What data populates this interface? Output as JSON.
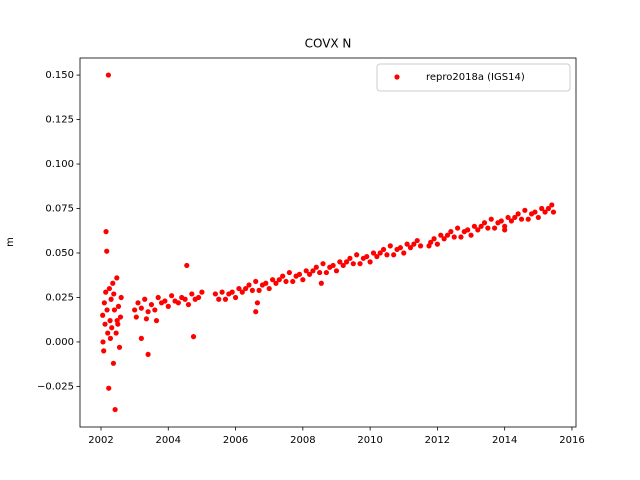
{
  "chart_data": {
    "type": "scatter",
    "title": "COVX N",
    "y_label": "m",
    "xlim": [
      2001.376,
      2016.12
    ],
    "ylim": [
      -0.0478,
      0.1596
    ],
    "xticks": [
      2002,
      2004,
      2006,
      2008,
      2010,
      2012,
      2014,
      2016
    ],
    "yticks": [
      {
        "value": -0.025,
        "label": "−0.025"
      },
      {
        "value": 0,
        "label": "0.000"
      },
      {
        "value": 0.025,
        "label": "0.025"
      },
      {
        "value": 0.05,
        "label": "0.050"
      },
      {
        "value": 0.075,
        "label": "0.075"
      },
      {
        "value": 0.1,
        "label": "0.100"
      },
      {
        "value": 0.125,
        "label": "0.125"
      },
      {
        "value": 0.15,
        "label": "0.150"
      }
    ],
    "legend": "upper right",
    "grid": false,
    "series": [
      {
        "name": "repro2018a (IGS14)",
        "color": "#ff0000",
        "x": [
          2002.05,
          2002.08,
          2002.1,
          2002.12,
          2002.15,
          2002.17,
          2002.18,
          2002.2,
          2002.22,
          2002.23,
          2002.25,
          2002.27,
          2002.3,
          2002.32,
          2002.35,
          2002.37,
          2002.4,
          2002.42,
          2002.45,
          2002.47,
          2002.5,
          2002.52,
          2002.55,
          2002.58,
          2002.6,
          2002.06,
          2002.14,
          2002.28,
          2002.38,
          2002.48,
          2003.0,
          2003.1,
          2003.2,
          2003.3,
          2003.4,
          2003.5,
          2003.6,
          2003.7,
          2003.8,
          2003.9,
          2004.0,
          2004.1,
          2004.2,
          2004.3,
          2004.4,
          2004.5,
          2004.6,
          2004.7,
          2004.8,
          2004.9,
          2005.0,
          2003.05,
          2003.35,
          2003.65,
          2003.4,
          2003.2,
          2004.55,
          2004.75,
          2005.4,
          2005.5,
          2005.6,
          2005.7,
          2005.8,
          2005.9,
          2006.0,
          2006.1,
          2006.2,
          2006.3,
          2006.4,
          2006.5,
          2006.6,
          2006.7,
          2006.8,
          2006.9,
          2007.0,
          2007.1,
          2007.2,
          2007.3,
          2007.4,
          2007.5,
          2007.6,
          2007.7,
          2007.8,
          2007.9,
          2008.0,
          2008.1,
          2008.2,
          2008.3,
          2008.4,
          2008.5,
          2008.6,
          2008.7,
          2008.8,
          2008.9,
          2009.0,
          2009.1,
          2009.2,
          2009.3,
          2009.4,
          2009.5,
          2009.6,
          2009.7,
          2009.8,
          2009.9,
          2010.0,
          2010.1,
          2010.2,
          2010.3,
          2010.4,
          2010.5,
          2010.6,
          2010.7,
          2010.8,
          2010.9,
          2011.0,
          2011.1,
          2011.2,
          2011.3,
          2011.4,
          2011.5,
          2011.8,
          2011.9,
          2012.0,
          2012.1,
          2012.2,
          2012.3,
          2012.4,
          2012.5,
          2012.6,
          2012.7,
          2012.8,
          2012.9,
          2013.0,
          2013.1,
          2013.2,
          2013.3,
          2013.4,
          2013.5,
          2013.6,
          2013.7,
          2013.8,
          2013.9,
          2014.0,
          2014.1,
          2014.2,
          2014.3,
          2014.4,
          2014.5,
          2014.6,
          2014.7,
          2014.8,
          2014.9,
          2015.0,
          2015.1,
          2015.2,
          2015.3,
          2015.4,
          2015.45,
          2006.6,
          2006.65,
          2011.75,
          2014.0,
          2008.55
        ],
        "values": [
          0.015,
          -0.005,
          0.022,
          0.01,
          0.062,
          0.051,
          0.018,
          0.005,
          0.15,
          -0.026,
          0.03,
          0.012,
          0.024,
          0.008,
          0.033,
          -0.012,
          0.018,
          -0.038,
          0.005,
          0.036,
          0.01,
          0.02,
          -0.003,
          0.014,
          0.025,
          0.0,
          0.028,
          0.002,
          0.027,
          0.012,
          0.018,
          0.022,
          0.019,
          0.024,
          0.017,
          0.021,
          0.018,
          0.025,
          0.022,
          0.023,
          0.02,
          0.026,
          0.023,
          0.022,
          0.025,
          0.024,
          0.021,
          0.027,
          0.024,
          0.025,
          0.028,
          0.014,
          0.013,
          0.012,
          -0.007,
          0.002,
          0.043,
          0.003,
          0.027,
          0.024,
          0.028,
          0.024,
          0.027,
          0.028,
          0.025,
          0.03,
          0.028,
          0.03,
          0.032,
          0.029,
          0.034,
          0.029,
          0.032,
          0.033,
          0.03,
          0.035,
          0.033,
          0.035,
          0.037,
          0.034,
          0.039,
          0.034,
          0.037,
          0.038,
          0.035,
          0.04,
          0.038,
          0.04,
          0.042,
          0.039,
          0.044,
          0.039,
          0.042,
          0.043,
          0.04,
          0.045,
          0.043,
          0.045,
          0.047,
          0.044,
          0.049,
          0.044,
          0.047,
          0.048,
          0.045,
          0.05,
          0.048,
          0.05,
          0.052,
          0.049,
          0.054,
          0.049,
          0.052,
          0.053,
          0.05,
          0.055,
          0.053,
          0.055,
          0.057,
          0.054,
          0.056,
          0.058,
          0.055,
          0.06,
          0.058,
          0.06,
          0.062,
          0.059,
          0.064,
          0.059,
          0.062,
          0.063,
          0.06,
          0.065,
          0.063,
          0.065,
          0.067,
          0.064,
          0.069,
          0.064,
          0.067,
          0.068,
          0.065,
          0.07,
          0.068,
          0.07,
          0.072,
          0.069,
          0.074,
          0.069,
          0.072,
          0.073,
          0.07,
          0.075,
          0.073,
          0.075,
          0.077,
          0.073,
          0.017,
          0.022,
          0.054,
          0.063,
          0.033
        ]
      }
    ]
  }
}
